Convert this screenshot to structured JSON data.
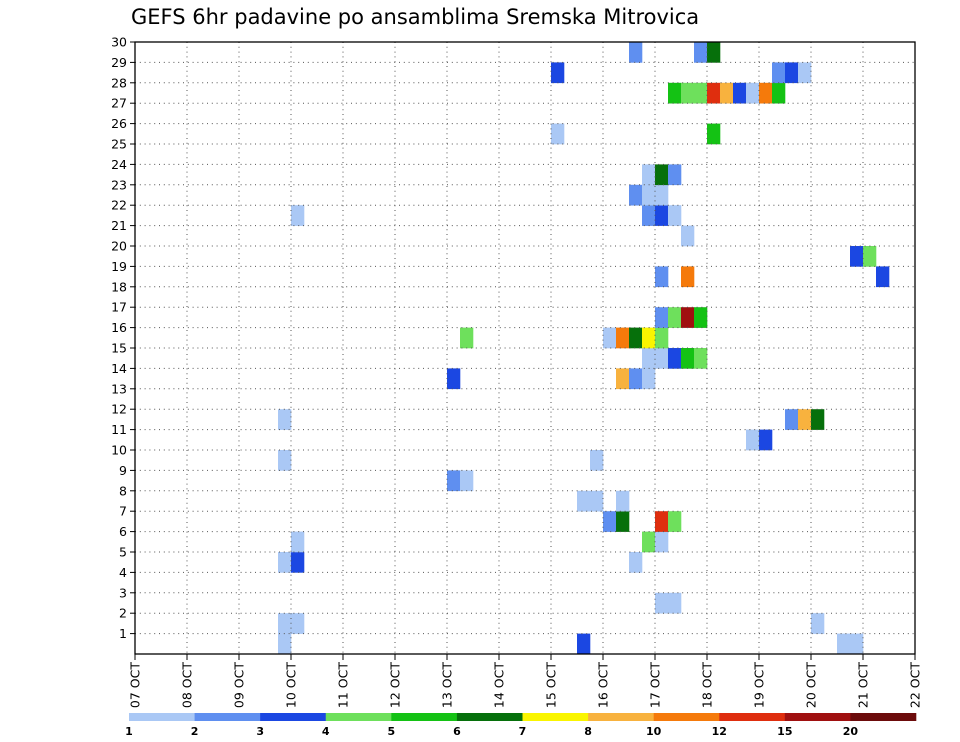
{
  "chart_data": {
    "type": "heatmap",
    "title": "GEFS 6hr padavine po ansamblima Sremska Mitrovica",
    "xlabel": "",
    "ylabel": "",
    "x_ticks": [
      "07 OCT",
      "08 OCT",
      "09 OCT",
      "10 OCT",
      "11 OCT",
      "12 OCT",
      "13 OCT",
      "14 OCT",
      "15 OCT",
      "16 OCT",
      "17 OCT",
      "18 OCT",
      "19 OCT",
      "20 OCT",
      "21 OCT",
      "22 OCT"
    ],
    "y_ticks": [
      "1",
      "2",
      "3",
      "4",
      "5",
      "6",
      "7",
      "8",
      "9",
      "10",
      "11",
      "12",
      "13",
      "14",
      "15",
      "16",
      "17",
      "18",
      "19",
      "20",
      "21",
      "22",
      "23",
      "24",
      "25",
      "26",
      "27",
      "28",
      "29",
      "30"
    ],
    "xlim": [
      0,
      60
    ],
    "ylim": [
      0,
      30
    ],
    "grid": true,
    "colorbar": {
      "levels": [
        "1",
        "2",
        "3",
        "4",
        "5",
        "6",
        "7",
        "8",
        "10",
        "12",
        "15",
        "20"
      ],
      "colors": [
        "#aac8f5",
        "#5f8ff0",
        "#1b47e2",
        "#6ee05c",
        "#14c214",
        "#06700b",
        "#faf500",
        "#f8b23e",
        "#f57a0b",
        "#df2e0e",
        "#a01010",
        "#6c0b0b"
      ]
    },
    "cells": [
      {
        "x": 11,
        "y": 0,
        "v": 0
      },
      {
        "x": 11,
        "y": 1,
        "v": 0
      },
      {
        "x": 12,
        "y": 1,
        "v": 0
      },
      {
        "x": 11,
        "y": 4,
        "v": 0
      },
      {
        "x": 12,
        "y": 4,
        "v": 2
      },
      {
        "x": 12,
        "y": 5,
        "v": 0
      },
      {
        "x": 11,
        "y": 9,
        "v": 0
      },
      {
        "x": 11,
        "y": 11,
        "v": 0
      },
      {
        "x": 12,
        "y": 21,
        "v": 0
      },
      {
        "x": 24,
        "y": 8,
        "v": 1
      },
      {
        "x": 25,
        "y": 8,
        "v": 0
      },
      {
        "x": 24,
        "y": 13,
        "v": 2
      },
      {
        "x": 25,
        "y": 15,
        "v": 3
      },
      {
        "x": 32,
        "y": 25,
        "v": 0
      },
      {
        "x": 32,
        "y": 28,
        "v": 2
      },
      {
        "x": 34,
        "y": 0,
        "v": 2
      },
      {
        "x": 34,
        "y": 7,
        "v": 0
      },
      {
        "x": 35,
        "y": 7,
        "v": 0
      },
      {
        "x": 35,
        "y": 9,
        "v": 0
      },
      {
        "x": 36,
        "y": 6,
        "v": 1
      },
      {
        "x": 37,
        "y": 6,
        "v": 5
      },
      {
        "x": 37,
        "y": 7,
        "v": 0
      },
      {
        "x": 38,
        "y": 4,
        "v": 0
      },
      {
        "x": 39,
        "y": 5,
        "v": 3
      },
      {
        "x": 40,
        "y": 5,
        "v": 0
      },
      {
        "x": 40,
        "y": 6,
        "v": 9
      },
      {
        "x": 41,
        "y": 6,
        "v": 3
      },
      {
        "x": 40,
        "y": 2,
        "v": 0
      },
      {
        "x": 41,
        "y": 2,
        "v": 0
      },
      {
        "x": 37,
        "y": 13,
        "v": 7
      },
      {
        "x": 38,
        "y": 13,
        "v": 1
      },
      {
        "x": 39,
        "y": 13,
        "v": 0
      },
      {
        "x": 39,
        "y": 14,
        "v": 0
      },
      {
        "x": 40,
        "y": 14,
        "v": 0
      },
      {
        "x": 41,
        "y": 14,
        "v": 2
      },
      {
        "x": 42,
        "y": 14,
        "v": 4
      },
      {
        "x": 43,
        "y": 14,
        "v": 3
      },
      {
        "x": 36,
        "y": 15,
        "v": 0
      },
      {
        "x": 37,
        "y": 15,
        "v": 8
      },
      {
        "x": 38,
        "y": 15,
        "v": 5
      },
      {
        "x": 39,
        "y": 15,
        "v": 6
      },
      {
        "x": 40,
        "y": 15,
        "v": 3
      },
      {
        "x": 40,
        "y": 16,
        "v": 1
      },
      {
        "x": 41,
        "y": 16,
        "v": 3
      },
      {
        "x": 42,
        "y": 16,
        "v": 10
      },
      {
        "x": 43,
        "y": 16,
        "v": 4
      },
      {
        "x": 40,
        "y": 18,
        "v": 1
      },
      {
        "x": 42,
        "y": 18,
        "v": 8
      },
      {
        "x": 42,
        "y": 20,
        "v": 0
      },
      {
        "x": 39,
        "y": 21,
        "v": 1
      },
      {
        "x": 40,
        "y": 21,
        "v": 2
      },
      {
        "x": 41,
        "y": 21,
        "v": 0
      },
      {
        "x": 38,
        "y": 22,
        "v": 1
      },
      {
        "x": 39,
        "y": 22,
        "v": 0
      },
      {
        "x": 40,
        "y": 22,
        "v": 0
      },
      {
        "x": 39,
        "y": 23,
        "v": 0
      },
      {
        "x": 40,
        "y": 23,
        "v": 5
      },
      {
        "x": 41,
        "y": 23,
        "v": 1
      },
      {
        "x": 44,
        "y": 25,
        "v": 4
      },
      {
        "x": 41,
        "y": 27,
        "v": 4
      },
      {
        "x": 42,
        "y": 27,
        "v": 3
      },
      {
        "x": 43,
        "y": 27,
        "v": 3
      },
      {
        "x": 44,
        "y": 27,
        "v": 9
      },
      {
        "x": 45,
        "y": 27,
        "v": 7
      },
      {
        "x": 46,
        "y": 27,
        "v": 2
      },
      {
        "x": 47,
        "y": 27,
        "v": 0
      },
      {
        "x": 48,
        "y": 27,
        "v": 8
      },
      {
        "x": 49,
        "y": 27,
        "v": 4
      },
      {
        "x": 38,
        "y": 29,
        "v": 1
      },
      {
        "x": 43,
        "y": 29,
        "v": 1
      },
      {
        "x": 44,
        "y": 29,
        "v": 5
      },
      {
        "x": 49,
        "y": 28,
        "v": 1
      },
      {
        "x": 50,
        "y": 28,
        "v": 2
      },
      {
        "x": 51,
        "y": 28,
        "v": 0
      },
      {
        "x": 47,
        "y": 10,
        "v": 0
      },
      {
        "x": 48,
        "y": 10,
        "v": 2
      },
      {
        "x": 50,
        "y": 11,
        "v": 1
      },
      {
        "x": 51,
        "y": 11,
        "v": 7
      },
      {
        "x": 52,
        "y": 11,
        "v": 5
      },
      {
        "x": 52,
        "y": 1,
        "v": 0
      },
      {
        "x": 54,
        "y": 0,
        "v": 0
      },
      {
        "x": 55,
        "y": 0,
        "v": 0
      },
      {
        "x": 57,
        "y": 18,
        "v": 2
      },
      {
        "x": 55,
        "y": 19,
        "v": 2
      },
      {
        "x": 56,
        "y": 19,
        "v": 3
      }
    ]
  }
}
